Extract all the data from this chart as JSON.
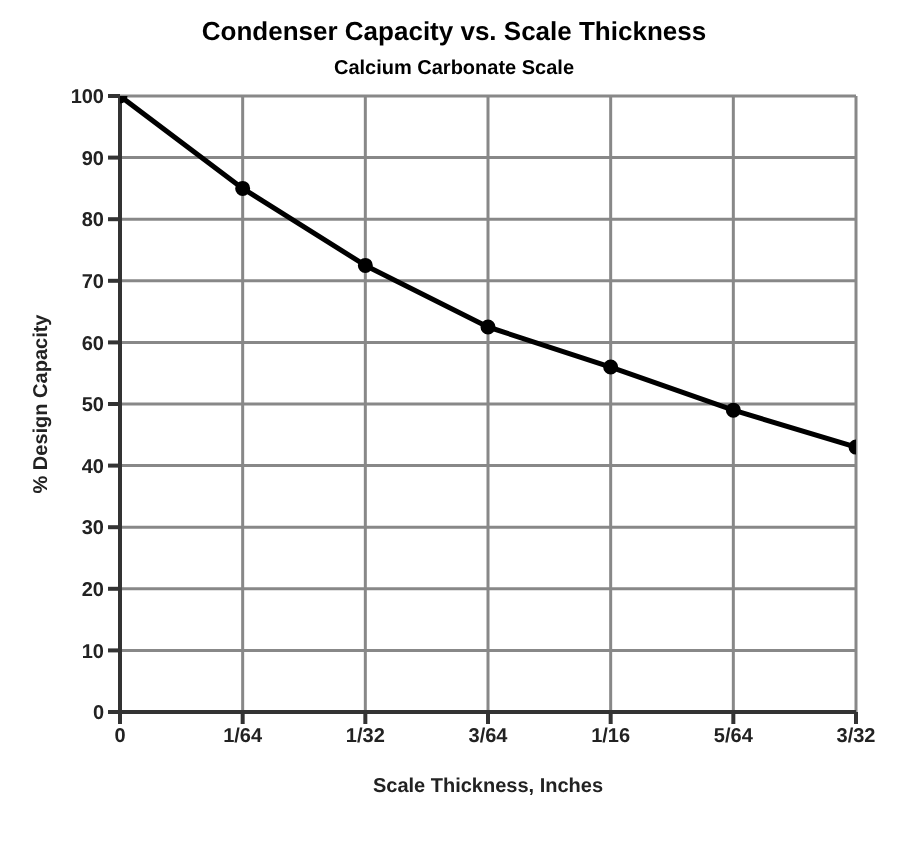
{
  "chart_data": {
    "type": "line",
    "title": "Condenser Capacity vs. Scale Thickness",
    "subtitle": "Calcium Carbonate Scale",
    "xlabel": "Scale Thickness, Inches",
    "ylabel": "% Design Capacity",
    "categories": [
      "0",
      "1/64",
      "1/32",
      "3/64",
      "1/16",
      "5/64",
      "3/32"
    ],
    "series": [
      {
        "color": "#000000",
        "values": [
          100,
          85,
          72.5,
          62.5,
          56,
          49,
          43
        ]
      }
    ],
    "ylim": [
      0,
      100
    ],
    "yticks": [
      0,
      10,
      20,
      30,
      40,
      50,
      60,
      70,
      80,
      90,
      100
    ],
    "grid": true,
    "marker": "circle",
    "line_style": "solid"
  }
}
